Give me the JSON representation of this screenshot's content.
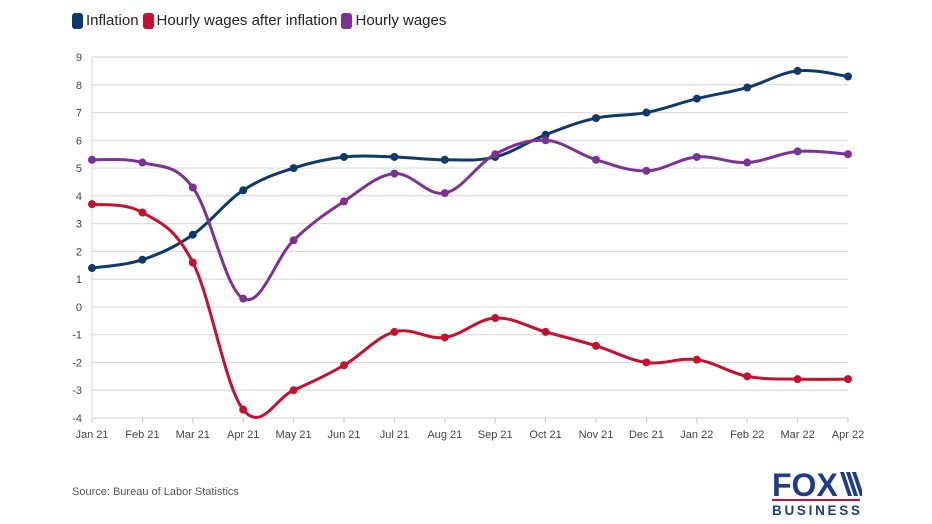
{
  "chart_data": {
    "type": "line",
    "title": "",
    "xlabel": "",
    "ylabel": "",
    "categories": [
      "Jan 21",
      "Feb 21",
      "Mar 21",
      "Apr 21",
      "May 21",
      "Jun 21",
      "Jul 21",
      "Aug 21",
      "Sep 21",
      "Oct 21",
      "Nov 21",
      "Dec 21",
      "Jan 22",
      "Feb 22",
      "Mar 22",
      "Apr 22"
    ],
    "ylim": [
      -4,
      9
    ],
    "yticks": [
      "9",
      "8",
      "7",
      "6",
      "5",
      "4",
      "3",
      "2",
      "1",
      "0",
      "-1",
      "-2",
      "-3",
      "-4"
    ],
    "grid": true,
    "legend_position": "top-left",
    "series": [
      {
        "name": "Inflation",
        "color": "#0d3a6b",
        "values": [
          1.4,
          1.7,
          2.6,
          4.2,
          5.0,
          5.4,
          5.4,
          5.3,
          5.4,
          6.2,
          6.8,
          7.0,
          7.5,
          7.9,
          8.5,
          8.3
        ]
      },
      {
        "name": "Hourly wages after inflation",
        "color": "#c8102e",
        "values": [
          3.7,
          3.4,
          1.6,
          -3.7,
          -3.0,
          -2.1,
          -0.9,
          -1.1,
          -0.4,
          -0.9,
          -1.4,
          -2.0,
          -1.9,
          -2.5,
          -2.6,
          -2.6
        ]
      },
      {
        "name": "Hourly wages",
        "color": "#7b3294",
        "values": [
          5.3,
          5.2,
          4.3,
          0.3,
          2.4,
          3.8,
          4.8,
          4.1,
          5.5,
          6.0,
          5.3,
          4.9,
          5.4,
          5.2,
          5.6,
          5.5
        ]
      }
    ]
  },
  "legend": [
    {
      "label": "Inflation",
      "color": "#0d3a6b"
    },
    {
      "label": "Hourly wages after inflation",
      "color": "#c8102e"
    },
    {
      "label": "Hourly wages",
      "color": "#7b3294"
    }
  ],
  "source": "Source: Bureau of Labor Statistics",
  "logo": {
    "top": "FOX",
    "bottom": "BUSINESS",
    "color": "#1e3c8c",
    "accent": "#c8102e"
  }
}
